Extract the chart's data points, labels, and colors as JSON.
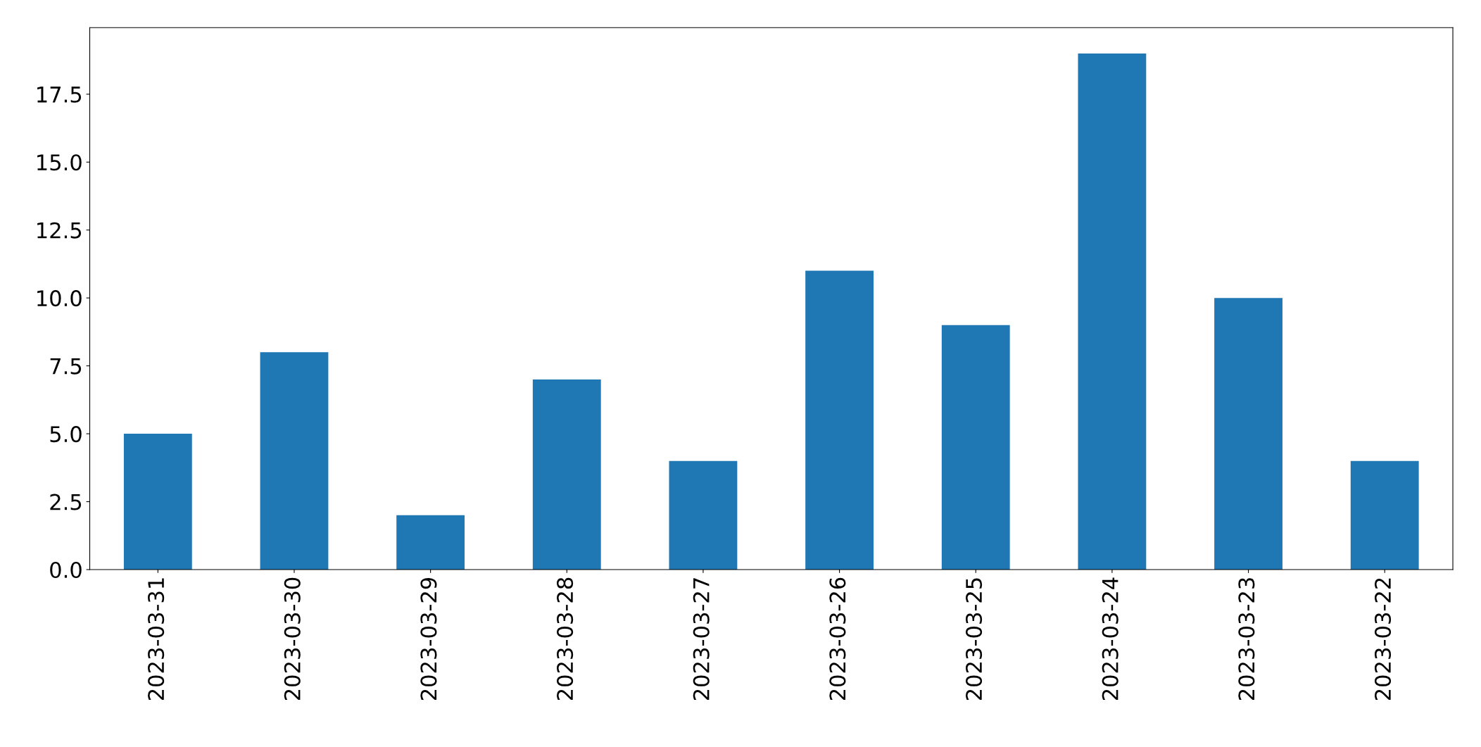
{
  "chart_data": {
    "type": "bar",
    "categories": [
      "2023-03-31",
      "2023-03-30",
      "2023-03-29",
      "2023-03-28",
      "2023-03-27",
      "2023-03-26",
      "2023-03-25",
      "2023-03-24",
      "2023-03-23",
      "2023-03-22"
    ],
    "values": [
      5,
      8,
      2,
      7,
      4,
      11,
      9,
      19,
      10,
      4
    ],
    "color": "#1f77b4",
    "ylim": [
      0,
      19.95
    ],
    "yticks": [
      {
        "value": 0,
        "label": "0.0"
      },
      {
        "value": 2.5,
        "label": "2.5"
      },
      {
        "value": 5,
        "label": "5.0"
      },
      {
        "value": 7.5,
        "label": "7.5"
      },
      {
        "value": 10,
        "label": "10.0"
      },
      {
        "value": 12.5,
        "label": "12.5"
      },
      {
        "value": 15,
        "label": "15.0"
      },
      {
        "value": 17.5,
        "label": "17.5"
      }
    ],
    "grid": false,
    "legend": false
  }
}
